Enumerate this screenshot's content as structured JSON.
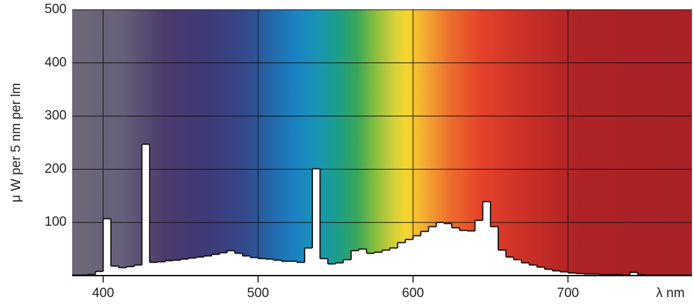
{
  "chart_data": {
    "type": "histogram",
    "y_label": "μ W per 5 nm per lm",
    "x_label": "λ nm",
    "bins": [
      380,
      385,
      390,
      395,
      400,
      405,
      410,
      415,
      420,
      425,
      430,
      435,
      440,
      445,
      450,
      455,
      460,
      465,
      470,
      475,
      480,
      485,
      490,
      495,
      500,
      505,
      510,
      515,
      520,
      525,
      530,
      535,
      540,
      545,
      550,
      555,
      560,
      565,
      570,
      575,
      580,
      585,
      590,
      595,
      600,
      605,
      610,
      615,
      620,
      625,
      630,
      635,
      640,
      645,
      650,
      655,
      660,
      665,
      670,
      675,
      680,
      685,
      690,
      695,
      700,
      705,
      710,
      715,
      720,
      725,
      730,
      735,
      740,
      745,
      750,
      755,
      760,
      765,
      770,
      775,
      780
    ],
    "values": [
      1,
      1,
      2,
      8,
      107,
      18,
      15,
      17,
      20,
      247,
      25,
      26,
      28,
      29,
      31,
      33,
      35,
      37,
      40,
      43,
      47,
      42,
      37,
      34,
      32,
      31,
      29,
      27,
      27,
      25,
      52,
      201,
      32,
      22,
      24,
      30,
      47,
      50,
      42,
      44,
      48,
      52,
      62,
      68,
      75,
      83,
      92,
      100,
      98,
      90,
      85,
      84,
      104,
      139,
      92,
      48,
      35,
      30,
      24,
      20,
      16,
      12,
      9,
      7,
      5,
      4,
      3,
      3,
      2,
      2,
      2,
      1,
      6,
      2,
      1,
      1,
      1,
      1,
      1,
      1
    ],
    "color": "#ffffff",
    "xlim": [
      380,
      780
    ],
    "xticks": [
      400,
      500,
      600,
      700
    ],
    "ylim": [
      0,
      500
    ],
    "yticks": [
      100,
      200,
      300,
      400,
      500
    ],
    "grid": true
  }
}
